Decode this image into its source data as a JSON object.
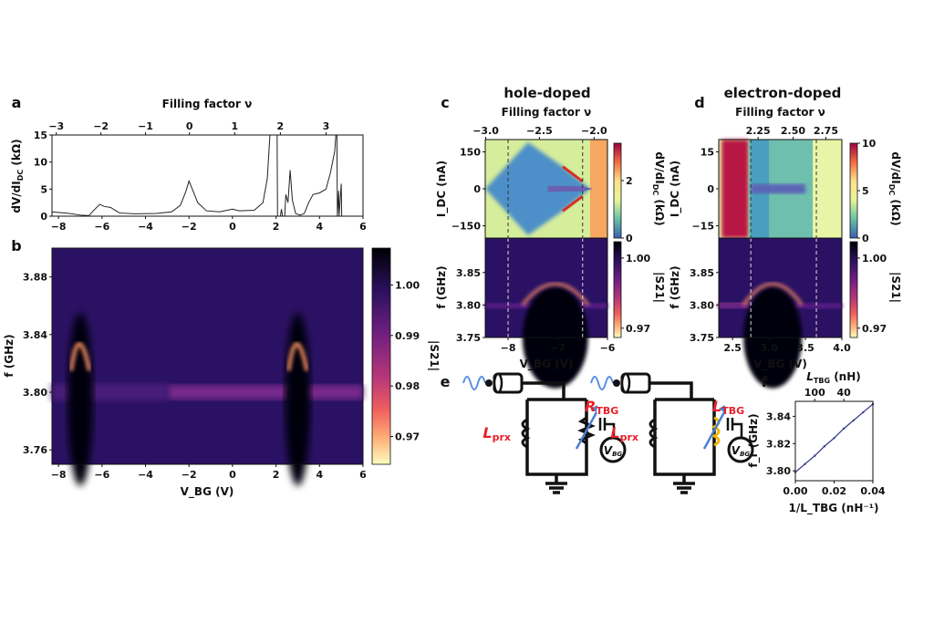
{
  "chart_data": [
    {
      "panel": "a",
      "type": "line",
      "title": "",
      "xlabel": "V_BG (V)",
      "ylabel": "dV/dI_DC (kΩ)",
      "top_xlabel": "Filling factor ν",
      "xlim": [
        -8.3,
        6
      ],
      "ylim": [
        0,
        15
      ],
      "xticks": [
        "−8",
        "−6",
        "−4",
        "−2",
        "0",
        "2",
        "4",
        "6"
      ],
      "xtick_values": [
        -8,
        -6,
        -4,
        -2,
        0,
        2,
        4,
        6
      ],
      "yticks": [
        "0",
        "5",
        "10",
        "15"
      ],
      "ytick_values": [
        0,
        5,
        10,
        15
      ],
      "top_xticks": [
        "−3",
        "−2",
        "−1",
        "0",
        "1",
        "2",
        "3"
      ],
      "top_xtick_positions_V": [
        -8.1,
        -6.05,
        -4.0,
        -1.98,
        0.1,
        2.2,
        4.3
      ],
      "series": [
        {
          "name": "dV/dI",
          "x": [
            -8.3,
            -7.5,
            -7,
            -6.6,
            -6.4,
            -6.1,
            -5.9,
            -5.6,
            -5.2,
            -4.5,
            -3.5,
            -2.8,
            -2.4,
            -2.15,
            -2.0,
            -1.9,
            -1.6,
            -1.2,
            -0.6,
            0,
            0.3,
            1.0,
            1.4,
            1.6,
            1.72,
            2.05,
            2.07,
            2.2,
            2.25,
            2.3,
            2.4,
            2.45,
            2.55,
            2.65,
            2.75,
            2.9,
            3.1,
            3.3,
            3.5,
            3.7,
            4.0,
            4.3,
            4.5,
            4.6,
            4.7,
            4.75,
            4.8,
            4.82,
            4.88,
            4.9,
            5.0,
            5.02,
            6
          ],
          "y": [
            0.8,
            0.5,
            0.2,
            0.1,
            1.0,
            2.2,
            1.8,
            1.6,
            0.6,
            0.45,
            0.5,
            0.8,
            2.0,
            4.5,
            6.5,
            5.5,
            2.5,
            1.0,
            0.8,
            1.3,
            1.0,
            1.1,
            2.5,
            7,
            15,
            15,
            0,
            0,
            1.3,
            0,
            0,
            4,
            2.5,
            8.5,
            3,
            0.5,
            0.2,
            0.5,
            2.5,
            4,
            4.3,
            5,
            8,
            10,
            12,
            15,
            15,
            0,
            4.7,
            0,
            6,
            0,
            0
          ]
        }
      ]
    },
    {
      "panel": "b",
      "type": "heatmap",
      "xlabel": "V_BG (V)",
      "ylabel": "f (GHz)",
      "xlim": [
        -8.3,
        6
      ],
      "ylim": [
        3.75,
        3.9
      ],
      "xticks": [
        "−8",
        "−6",
        "−4",
        "−2",
        "0",
        "2",
        "4",
        "6"
      ],
      "xtick_values": [
        -8,
        -6,
        -4,
        -2,
        0,
        2,
        4,
        6
      ],
      "yticks": [
        "3.76",
        "3.80",
        "3.84",
        "3.88"
      ],
      "ytick_values": [
        3.76,
        3.8,
        3.84,
        3.88
      ],
      "colorbar": {
        "label": "|S21|",
        "range": [
          0.9645,
          1.0073
        ],
        "ticks": [
          "0.97",
          "0.98",
          "0.99",
          "1.00"
        ],
        "tick_values": [
          0.97,
          0.98,
          0.99,
          1.0
        ],
        "colormap": "magma"
      },
      "features": "resonance at ~3.80 GHz; shifted resonance arcs up to ~3.85 GHz near V_BG ≈ −7 V and ≈ 3 V"
    },
    {
      "panel": "c",
      "type": "heatmap",
      "title": "hole-doped",
      "top_xlabel": "Filling factor ν",
      "top_xticks": [
        "−3.0",
        "−2.5",
        "−2.0"
      ],
      "top_xtick_positions_V": [
        -8.45,
        -7.37,
        -6.27
      ],
      "xlabel": "V_BG (V)",
      "xlim": [
        -8.46,
        -6
      ],
      "xticks": [
        "−8",
        "−7",
        "−6"
      ],
      "xtick_values": [
        -8,
        -7,
        -6
      ],
      "dashed_lines_V": [
        -8,
        -6.5
      ],
      "upper": {
        "ylabel": "I_DC (nA)",
        "ylim": [
          -200,
          200
        ],
        "yticks": [
          "150",
          "0",
          "−150"
        ],
        "ytick_values": [
          150,
          0,
          -150
        ],
        "colorbar": {
          "label": "dV/dI_DC (kΩ)",
          "range": [
            0,
            3.3
          ],
          "ticks": [
            "0",
            "2"
          ],
          "tick_values": [
            0,
            2
          ],
          "colormap": "Spectral_r"
        }
      },
      "lower": {
        "ylabel": "f (GHz)",
        "ylim": [
          3.75,
          3.903
        ],
        "yticks": [
          "3.75",
          "3.80",
          "3.85"
        ],
        "ytick_values": [
          3.75,
          3.8,
          3.85
        ],
        "colorbar": {
          "label": "|S21|",
          "range": [
            0.966,
            1.007
          ],
          "ticks": [
            "0.97",
            "1.00"
          ],
          "tick_values": [
            0.97,
            1.0
          ],
          "colormap": "magma"
        }
      }
    },
    {
      "panel": "d",
      "type": "heatmap",
      "title": "electron-doped",
      "top_xlabel": "Filling factor ν",
      "top_xticks": [
        "2.25",
        "2.50",
        "2.75"
      ],
      "top_xtick_positions_V": [
        2.85,
        3.33,
        3.78
      ],
      "xlabel": "V_BG (V)",
      "xlim": [
        2.31,
        4.0
      ],
      "xticks": [
        "2.5",
        "3.0",
        "3.5",
        "4.0"
      ],
      "xtick_values": [
        2.5,
        3.0,
        3.5,
        4.0
      ],
      "dashed_lines_V": [
        2.75,
        3.65
      ],
      "upper": {
        "ylabel": "I_DC (nA)",
        "ylim": [
          -20,
          20
        ],
        "yticks": [
          "15",
          "0",
          "−15"
        ],
        "ytick_values": [
          15,
          0,
          -15
        ],
        "colorbar": {
          "label": "dV/dI_DC (kΩ)",
          "range": [
            0,
            10
          ],
          "ticks": [
            "0",
            "5",
            "10"
          ],
          "tick_values": [
            0,
            5,
            10
          ],
          "colormap": "Spectral_r"
        }
      },
      "lower": {
        "ylabel": "f (GHz)",
        "ylim": [
          3.75,
          3.903
        ],
        "yticks": [
          "3.75",
          "3.80",
          "3.85"
        ],
        "ytick_values": [
          3.75,
          3.8,
          3.85
        ],
        "colorbar": {
          "label": "|S21|",
          "range": [
            0.966,
            1.007
          ],
          "ticks": [
            "0.97",
            "1.00"
          ],
          "tick_values": [
            0.97,
            1.0
          ],
          "colormap": "magma"
        }
      }
    },
    {
      "panel": "f",
      "type": "line",
      "xlabel": "1/L_TBG (nH⁻¹)",
      "ylabel": "f_r (GHz)",
      "top_xlabel": "L_TBG (nH)",
      "xlim": [
        0,
        0.04
      ],
      "ylim": [
        3.7927,
        3.851
      ],
      "xticks": [
        "0.00",
        "0.02",
        "0.04"
      ],
      "xtick_values": [
        0,
        0.02,
        0.04
      ],
      "yticks": [
        "3.80",
        "3.82",
        "3.84"
      ],
      "ytick_values": [
        3.8,
        3.82,
        3.84
      ],
      "top_xticks": [
        "100",
        "40"
      ],
      "top_xtick_positions": [
        0.01,
        0.025
      ],
      "series": [
        {
          "name": "f_r",
          "x": [
            0,
            0.005,
            0.01,
            0.015,
            0.02,
            0.025,
            0.03,
            0.035,
            0.04
          ],
          "y": [
            3.799,
            3.805,
            3.811,
            3.818,
            3.824,
            3.831,
            3.837,
            3.843,
            3.849
          ]
        }
      ]
    }
  ],
  "labels": {
    "panel_a": "a",
    "panel_b": "b",
    "panel_c": "c",
    "panel_d": "d",
    "panel_e": "e",
    "panel_f": "f",
    "filling": "Filling factor ν",
    "axis_a_y_main": "dV/dI",
    "axis_a_y_sub": "DC",
    "axis_a_y_unit": " (kΩ)",
    "vbg_main": "V",
    "vbg_sub": "BG",
    "vbg_unit": " (V)",
    "f_ghz": "f (GHz)",
    "idc_main": "I",
    "idc_sub": "DC",
    "idc_unit": " (nA)",
    "dvdi_main": "dV/dI",
    "dvdi_sub": "DC",
    "dvdi_unit": " (kΩ)",
    "s21": "|S21|",
    "hole": "hole-doped",
    "electron": "electron-doped",
    "fr_main": "f",
    "fr_sub": "r",
    "fr_unit": " (GHz)",
    "ltbg_main": "L",
    "ltbg_sub": "TBG",
    "ltbg_unit": " (nH)",
    "inv_main": "1/L",
    "inv_sub": "TBG",
    "inv_unit": " (nH⁻¹)"
  },
  "circuit": {
    "left": {
      "inductor": "L",
      "inductor_sub": "prx",
      "element": "R",
      "element_sub": "TBG",
      "source": "V",
      "source_sub": "BG"
    },
    "right": {
      "inductor": "L",
      "inductor_sub": "prx",
      "element": "L",
      "element_sub": "TBG",
      "source": "V",
      "source_sub": "BG"
    }
  },
  "colors": {
    "text": "#111111",
    "accent_red": "#e8202a",
    "arrow_blue": "#4a7fd0",
    "inductor_yellow": "#f2b705"
  }
}
